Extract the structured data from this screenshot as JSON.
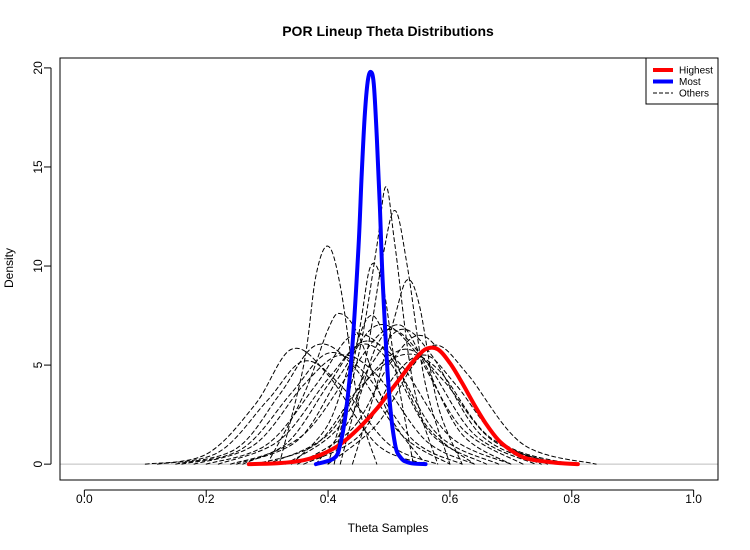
{
  "chart_data": {
    "type": "line",
    "title": "POR Lineup Theta Distributions",
    "xlabel": "Theta Samples",
    "ylabel": "Density",
    "xlim": [
      -0.04,
      1.04
    ],
    "ylim": [
      -0.8,
      20.5
    ],
    "xticks": [
      "0.0",
      "0.2",
      "0.4",
      "0.6",
      "0.8",
      "1.0"
    ],
    "yticks": [
      "0",
      "5",
      "10",
      "15",
      "20"
    ],
    "legend": {
      "position": "top-right",
      "entries": [
        {
          "label": "Highest",
          "color": "#ff0000",
          "style": "solid"
        },
        {
          "label": "Most",
          "color": "#0000ff",
          "style": "solid"
        },
        {
          "label": "Others",
          "color": "#000000",
          "style": "dashed"
        }
      ]
    },
    "series": [
      {
        "name": "Highest",
        "color": "#ff0000",
        "style": "solid",
        "x": [
          0.27,
          0.32,
          0.36,
          0.39,
          0.42,
          0.45,
          0.48,
          0.5,
          0.52,
          0.54,
          0.56,
          0.58,
          0.6,
          0.62,
          0.64,
          0.66,
          0.68,
          0.7,
          0.72,
          0.74,
          0.76,
          0.78,
          0.81
        ],
        "y": [
          0,
          0.05,
          0.2,
          0.5,
          1.0,
          1.8,
          2.8,
          3.6,
          4.4,
          5.2,
          5.8,
          5.8,
          5.1,
          4.1,
          3.0,
          2.0,
          1.2,
          0.7,
          0.35,
          0.2,
          0.12,
          0.05,
          0
        ]
      },
      {
        "name": "Most",
        "color": "#0000ff",
        "style": "solid",
        "x": [
          0.38,
          0.41,
          0.42,
          0.43,
          0.44,
          0.45,
          0.455,
          0.46,
          0.465,
          0.47,
          0.475,
          0.48,
          0.485,
          0.49,
          0.5,
          0.51,
          0.52,
          0.53,
          0.54,
          0.56
        ],
        "y": [
          0,
          0.3,
          1.0,
          2.8,
          6.0,
          11.0,
          14.5,
          17.5,
          19.3,
          19.8,
          19.2,
          16.5,
          13.0,
          9.0,
          3.6,
          1.0,
          0.3,
          0.1,
          0.03,
          0
        ]
      },
      {
        "color": "#000000",
        "style": "dashed",
        "x": [
          0.32,
          0.36,
          0.38,
          0.4,
          0.42,
          0.45,
          0.48
        ],
        "y": [
          0,
          5.0,
          9.5,
          11.0,
          9.0,
          3.0,
          0
        ]
      },
      {
        "color": "#000000",
        "style": "dashed",
        "x": [
          0.4,
          0.45,
          0.48,
          0.495,
          0.51,
          0.54,
          0.58
        ],
        "y": [
          0,
          5.5,
          11.0,
          14.0,
          11.0,
          4.0,
          0
        ]
      },
      {
        "color": "#000000",
        "style": "dashed",
        "x": [
          0.42,
          0.46,
          0.49,
          0.51,
          0.53,
          0.56,
          0.6
        ],
        "y": [
          0,
          5.0,
          10.5,
          12.8,
          10.0,
          4.0,
          0
        ]
      },
      {
        "color": "#000000",
        "style": "dashed",
        "x": [
          0.41,
          0.45,
          0.47,
          0.49,
          0.51,
          0.54
        ],
        "y": [
          0,
          6.5,
          10.0,
          9.0,
          5.0,
          0
        ]
      },
      {
        "color": "#000000",
        "style": "dashed",
        "x": [
          0.44,
          0.48,
          0.51,
          0.53,
          0.55,
          0.58,
          0.62
        ],
        "y": [
          0,
          4.0,
          7.5,
          9.3,
          8.0,
          3.0,
          0
        ]
      },
      {
        "color": "#000000",
        "style": "dashed",
        "x": [
          0.3,
          0.36,
          0.4,
          0.42,
          0.45,
          0.5,
          0.56
        ],
        "y": [
          0,
          3.5,
          6.8,
          7.6,
          6.5,
          2.5,
          0
        ]
      },
      {
        "color": "#000000",
        "style": "dashed",
        "x": [
          0.1,
          0.2,
          0.28,
          0.34,
          0.4,
          0.48,
          0.56
        ],
        "y": [
          0,
          0.5,
          3.0,
          5.8,
          4.5,
          1.0,
          0
        ]
      },
      {
        "color": "#000000",
        "style": "dashed",
        "x": [
          0.15,
          0.25,
          0.32,
          0.38,
          0.44,
          0.52,
          0.6
        ],
        "y": [
          0,
          0.8,
          3.5,
          6.0,
          5.0,
          1.5,
          0
        ]
      },
      {
        "color": "#000000",
        "style": "dashed",
        "x": [
          0.2,
          0.3,
          0.38,
          0.44,
          0.5,
          0.58,
          0.68
        ],
        "y": [
          0,
          1.0,
          4.0,
          6.5,
          5.5,
          1.5,
          0
        ]
      },
      {
        "color": "#000000",
        "style": "dashed",
        "x": [
          0.25,
          0.35,
          0.42,
          0.48,
          0.54,
          0.62,
          0.72
        ],
        "y": [
          0,
          1.2,
          4.5,
          7.0,
          5.8,
          1.8,
          0
        ]
      },
      {
        "color": "#000000",
        "style": "dashed",
        "x": [
          0.3,
          0.4,
          0.47,
          0.52,
          0.57,
          0.65,
          0.75
        ],
        "y": [
          0,
          1.5,
          5.0,
          6.8,
          5.5,
          1.5,
          0
        ]
      },
      {
        "color": "#000000",
        "style": "dashed",
        "x": [
          0.35,
          0.44,
          0.5,
          0.55,
          0.6,
          0.68,
          0.78
        ],
        "y": [
          0,
          1.8,
          5.0,
          6.5,
          5.0,
          1.2,
          0
        ]
      },
      {
        "color": "#000000",
        "style": "dashed",
        "x": [
          0.4,
          0.48,
          0.54,
          0.58,
          0.63,
          0.72,
          0.84
        ],
        "y": [
          0,
          2.0,
          5.0,
          6.0,
          4.5,
          1.0,
          0
        ]
      },
      {
        "color": "#000000",
        "style": "dashed",
        "x": [
          0.18,
          0.28,
          0.36,
          0.42,
          0.48,
          0.56,
          0.64
        ],
        "y": [
          0,
          1.0,
          4.0,
          5.5,
          4.5,
          1.2,
          0
        ]
      },
      {
        "color": "#000000",
        "style": "dashed",
        "x": [
          0.22,
          0.32,
          0.4,
          0.46,
          0.52,
          0.6,
          0.7
        ],
        "y": [
          0,
          1.2,
          4.3,
          6.2,
          5.0,
          1.4,
          0
        ]
      },
      {
        "color": "#000000",
        "style": "dashed",
        "x": [
          0.26,
          0.36,
          0.44,
          0.5,
          0.56,
          0.64,
          0.74
        ],
        "y": [
          0,
          1.5,
          4.8,
          6.8,
          5.2,
          1.5,
          0
        ]
      },
      {
        "color": "#000000",
        "style": "dashed",
        "x": [
          0.28,
          0.38,
          0.45,
          0.52,
          0.58,
          0.66,
          0.76
        ],
        "y": [
          0,
          1.0,
          3.8,
          5.5,
          4.8,
          1.5,
          0
        ]
      },
      {
        "color": "#000000",
        "style": "dashed",
        "x": [
          0.33,
          0.41,
          0.47,
          0.53,
          0.59,
          0.67,
          0.78
        ],
        "y": [
          0,
          1.6,
          4.5,
          5.8,
          4.2,
          1.2,
          0
        ]
      },
      {
        "color": "#000000",
        "style": "dashed",
        "x": [
          0.12,
          0.22,
          0.3,
          0.36,
          0.42,
          0.5,
          0.58
        ],
        "y": [
          0,
          0.6,
          3.2,
          5.2,
          4.0,
          1.0,
          0
        ]
      },
      {
        "color": "#000000",
        "style": "dashed",
        "x": [
          0.24,
          0.33,
          0.4,
          0.45,
          0.5,
          0.57,
          0.66
        ],
        "y": [
          0,
          1.0,
          4.0,
          6.0,
          5.2,
          1.5,
          0
        ]
      },
      {
        "color": "#000000",
        "style": "dashed",
        "x": [
          0.36,
          0.45,
          0.51,
          0.56,
          0.61,
          0.69,
          0.8
        ],
        "y": [
          0,
          1.4,
          4.5,
          5.5,
          4.0,
          1.0,
          0
        ]
      },
      {
        "color": "#000000",
        "style": "dashed",
        "x": [
          0.38,
          0.44,
          0.48,
          0.52,
          0.56,
          0.62,
          0.7
        ],
        "y": [
          0,
          2.5,
          6.0,
          7.0,
          5.0,
          1.5,
          0
        ]
      },
      {
        "color": "#000000",
        "style": "dashed",
        "x": [
          0.34,
          0.4,
          0.44,
          0.47,
          0.5,
          0.56,
          0.64
        ],
        "y": [
          0,
          2.0,
          5.5,
          7.5,
          6.0,
          2.0,
          0
        ]
      },
      {
        "color": "#000000",
        "style": "dashed",
        "x": [
          0.16,
          0.26,
          0.34,
          0.4,
          0.46,
          0.54,
          0.62
        ],
        "y": [
          0,
          0.8,
          3.6,
          5.6,
          4.6,
          1.2,
          0
        ]
      }
    ]
  }
}
